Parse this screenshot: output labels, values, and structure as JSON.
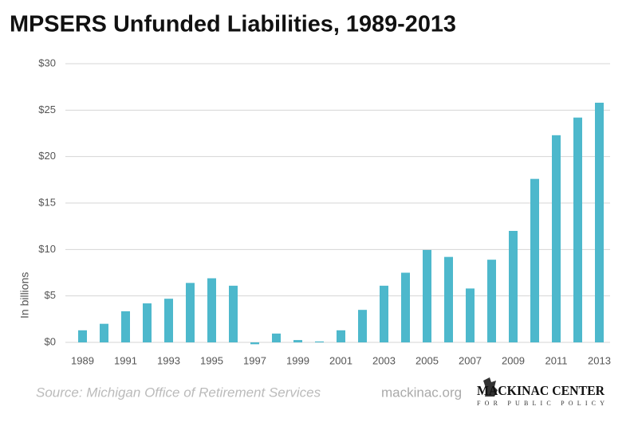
{
  "chart_data": {
    "type": "bar",
    "title": "MPSERS Unfunded Liabilities, 1989-2013",
    "y_label": "In billions",
    "categories": [
      "1989",
      null,
      "1991",
      null,
      "1993",
      null,
      "1995",
      null,
      "1997",
      null,
      "1999",
      null,
      "2001",
      null,
      "2003",
      null,
      "2005",
      null,
      "2007",
      null,
      "2009",
      null,
      "2011",
      null,
      "2013"
    ],
    "values": [
      1.3,
      2.0,
      3.35,
      4.2,
      4.7,
      6.4,
      6.9,
      6.1,
      -0.2,
      0.95,
      0.25,
      0.1,
      1.3,
      3.5,
      6.1,
      7.5,
      9.95,
      9.2,
      5.8,
      8.9,
      12.0,
      17.6,
      22.3,
      24.2,
      25.8
    ],
    "color": "#4db8cc",
    "ylim": [
      0,
      30
    ],
    "yticks": [
      {
        "value": 0,
        "label": "$0"
      },
      {
        "value": 5,
        "label": "$5"
      },
      {
        "value": 10,
        "label": "$10"
      },
      {
        "value": 15,
        "label": "$15"
      },
      {
        "value": 20,
        "label": "$20"
      },
      {
        "value": 25,
        "label": "$25"
      },
      {
        "value": 30,
        "label": "$30"
      }
    ],
    "grid": true,
    "source": "Source: Michigan Office of Retirement Services",
    "website": "mackinac.org",
    "logo": {
      "name": "MACKINAC CENTER",
      "tagline": "FOR PUBLIC POLICY"
    }
  }
}
